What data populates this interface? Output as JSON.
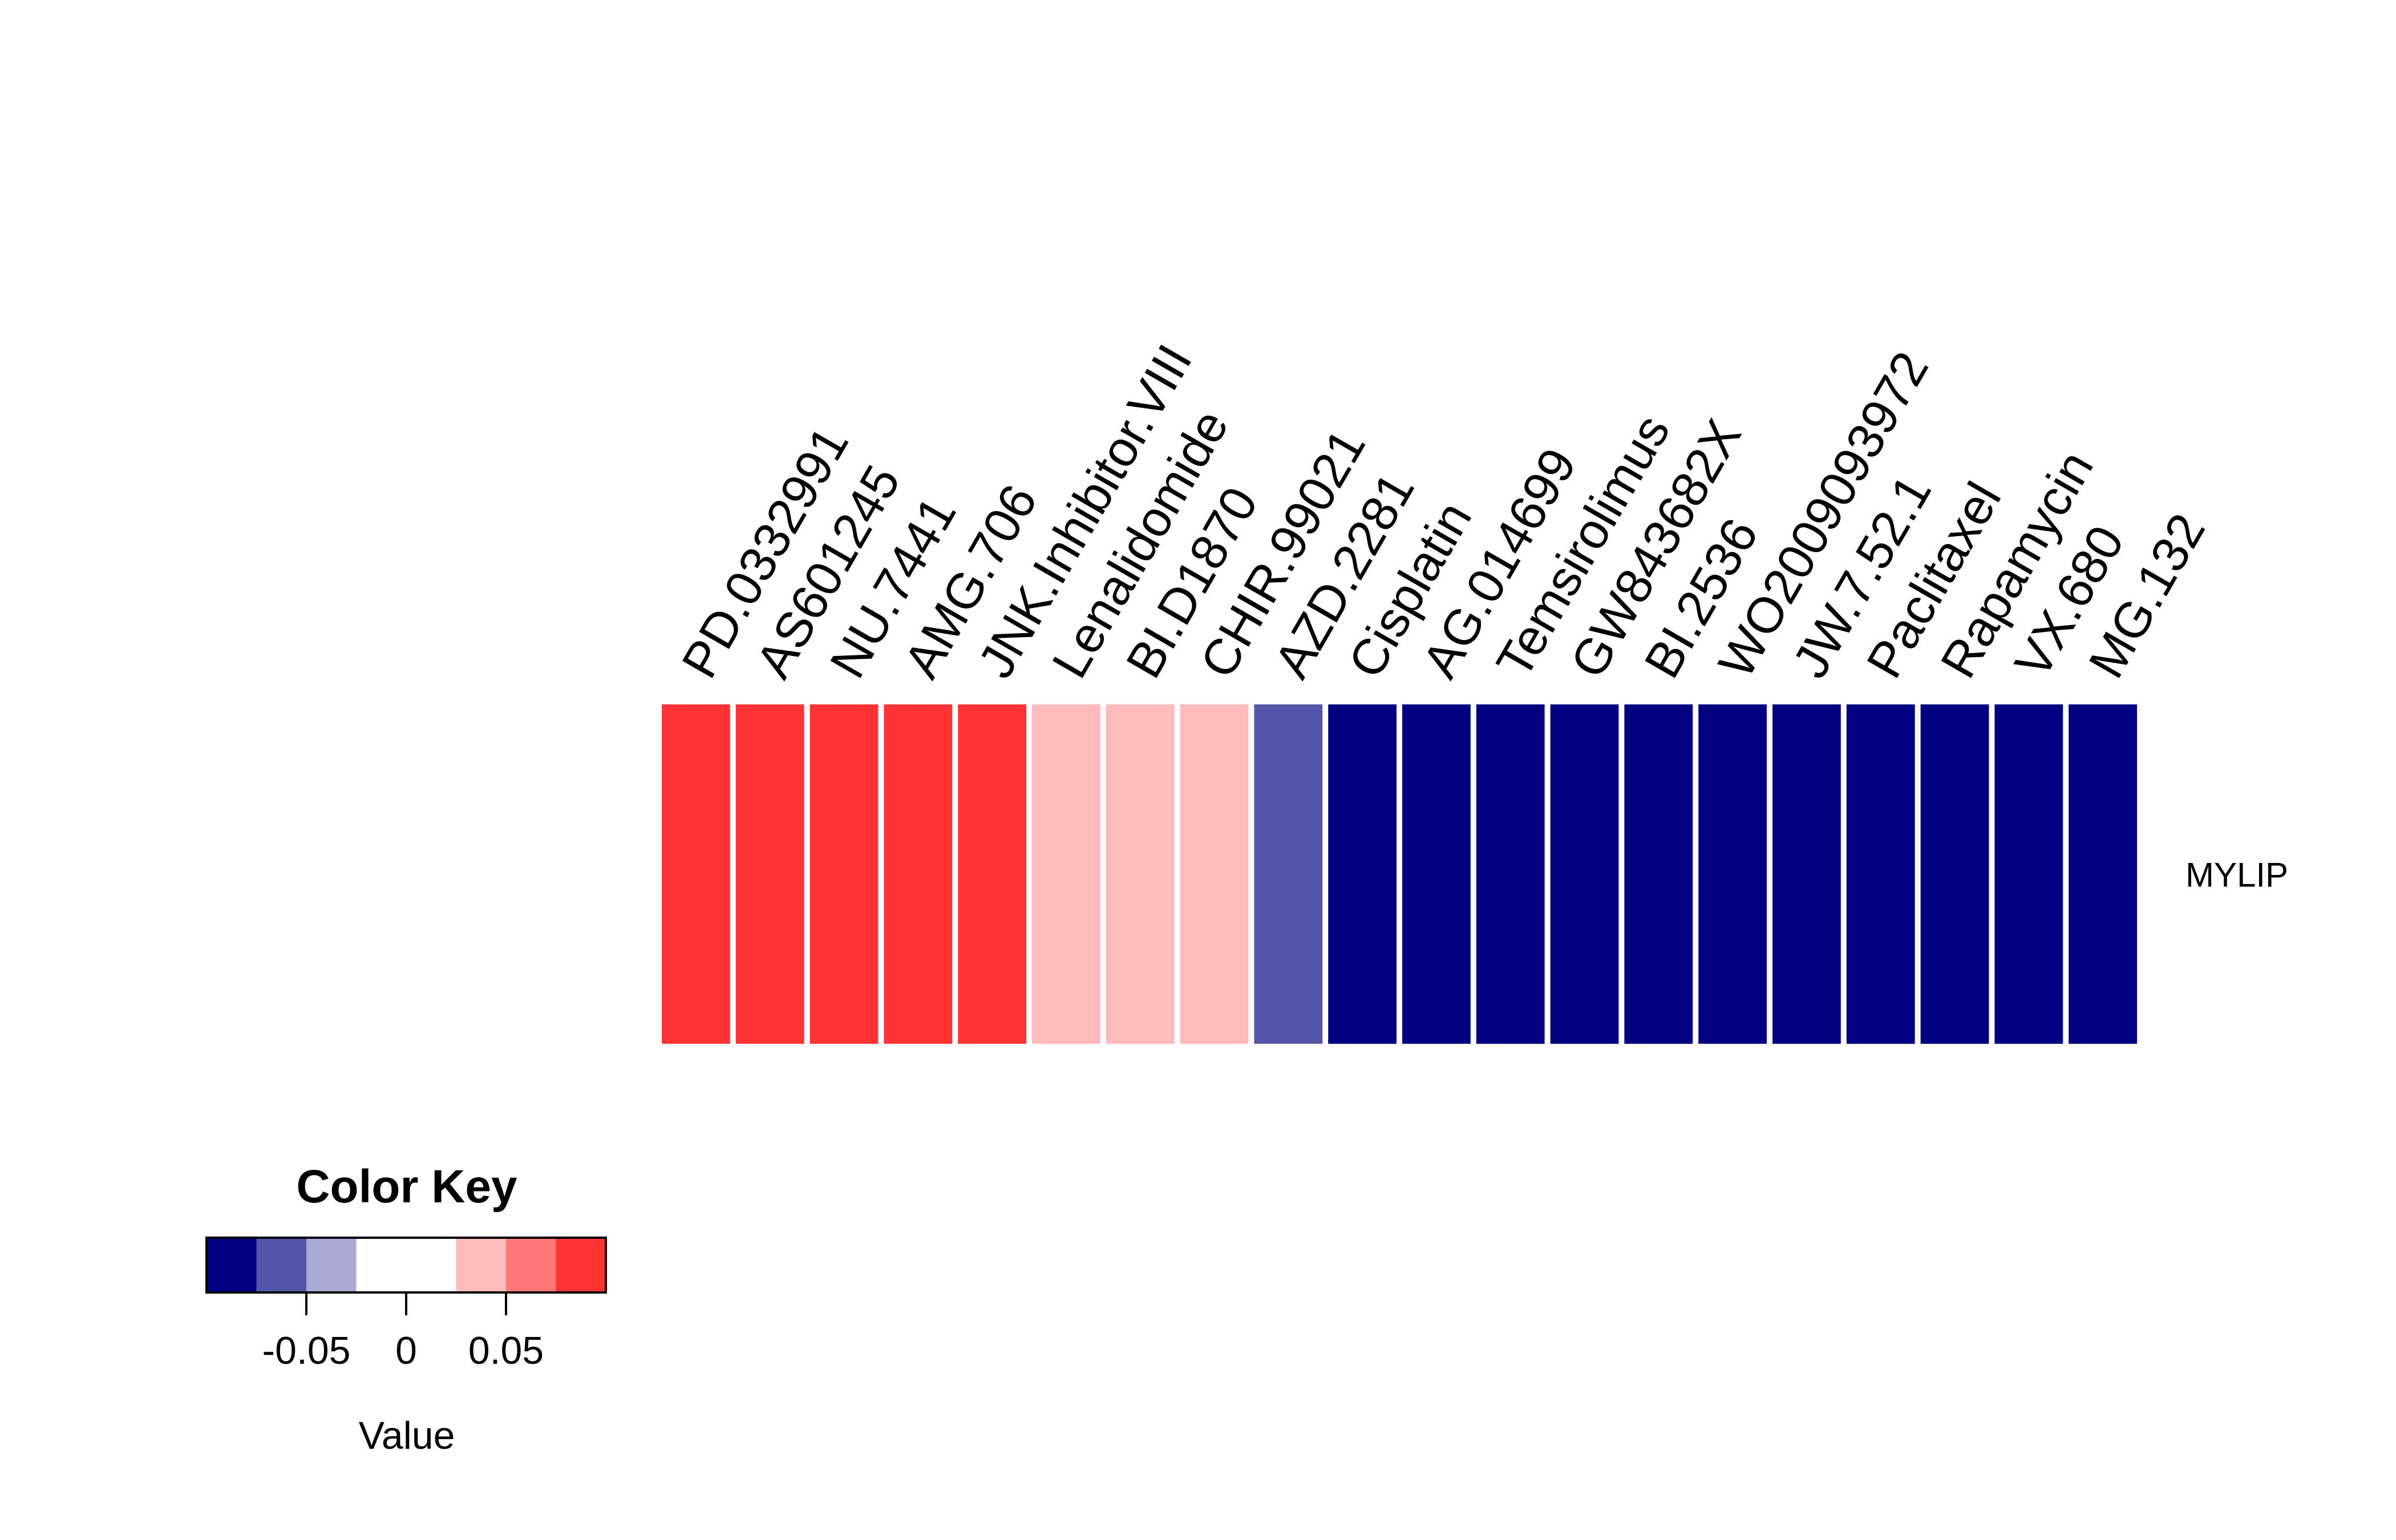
{
  "chart_data": {
    "type": "heatmap",
    "rows": [
      "MYLIP"
    ],
    "columns": [
      "PD.0332991",
      "AS601245",
      "NU.7441",
      "AMG.706",
      "JNK.Inhibitor.VIII",
      "Lenalidomide",
      "BI.D1870",
      "CHIR.99021",
      "AZD.2281",
      "Cisplatin",
      "AG.014699",
      "Temsirolimus",
      "GW843682X",
      "BI.2536",
      "WO2009093972",
      "JW.7.52.1",
      "Paclitaxel",
      "Rapamycin",
      "VX.680",
      "MG.132"
    ],
    "values": [
      [
        0.08,
        0.08,
        0.08,
        0.08,
        0.08,
        0.05,
        0.05,
        0.05,
        -0.06,
        -0.08,
        -0.08,
        -0.08,
        -0.08,
        -0.08,
        -0.08,
        -0.08,
        -0.08,
        -0.08,
        -0.08,
        -0.08
      ]
    ],
    "color_key": {
      "title": "Color Key",
      "xlabel": "Value",
      "breaks": [
        -0.1,
        -0.075,
        -0.05,
        -0.025,
        0.025,
        0.05,
        0.075,
        0.1
      ],
      "colors": [
        "#000080",
        "#5555AA",
        "#AAAAD4",
        "#FFFFFF",
        "#FFBBBB",
        "#FF7777",
        "#FF3333"
      ],
      "ticks": [
        -0.05,
        0,
        0.05
      ],
      "tick_labels": [
        "-0.05",
        "0",
        "0.05"
      ]
    }
  }
}
